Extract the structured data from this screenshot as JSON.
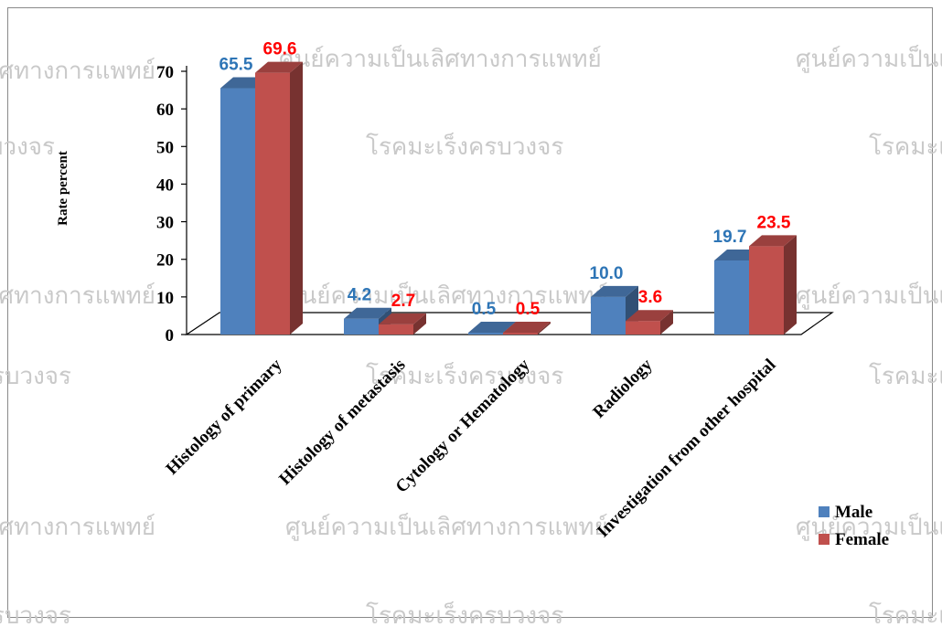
{
  "watermark": {
    "line1": "ศูนย์ความเป็นเลิศทางการแพทย์",
    "line2": "โรคมะเร็งครบวงจร"
  },
  "chart_data": {
    "type": "bar",
    "title": "",
    "xlabel": "",
    "ylabel": "Rate percent",
    "ylim": [
      0,
      70
    ],
    "yticks": [
      0,
      10,
      20,
      30,
      40,
      50,
      60,
      70
    ],
    "categories": [
      "Histology of primary",
      "Histology of metastasis",
      "Cytology or Hematology",
      "Radiology",
      "Investigation from other hospital"
    ],
    "series": [
      {
        "name": "Male",
        "values": [
          65.5,
          4.2,
          0.5,
          10.0,
          19.7
        ],
        "color": "#4f81bd",
        "label_color": "#2e75b6"
      },
      {
        "name": "Female",
        "values": [
          69.6,
          2.7,
          0.5,
          3.6,
          23.5
        ],
        "color": "#c0504d",
        "label_color": "#ff0000"
      }
    ],
    "data_labels": [
      [
        "65.5",
        "4.2",
        "0.5",
        "10.0",
        "19.7"
      ],
      [
        "69.6",
        "2.7",
        "0.5",
        "3.6",
        "23.5"
      ]
    ],
    "legend_position": "bottom-right",
    "three_d": true,
    "grid": false
  }
}
